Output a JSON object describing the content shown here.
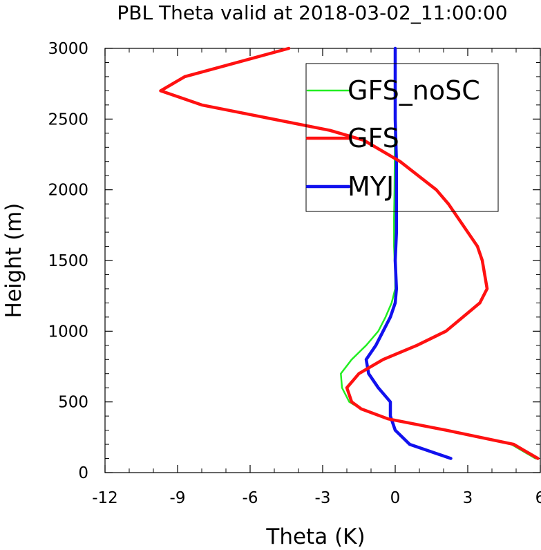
{
  "chart_data": {
    "type": "line",
    "title": "PBL Theta valid at 2018-03-02_11:00:00",
    "xlabel": "Theta (K)",
    "ylabel": "Height (m)",
    "xlim": [
      -12,
      6
    ],
    "ylim": [
      0,
      3000
    ],
    "xticks": [
      "-12",
      "-9",
      "-6",
      "-3",
      "0",
      "3",
      "6"
    ],
    "yticks": [
      "0",
      "500",
      "1000",
      "1500",
      "2000",
      "2500",
      "3000"
    ],
    "grid": false,
    "legend_position": "top-right",
    "series": [
      {
        "name": "GFS_noSC",
        "color": "#22ee22",
        "points": [
          [
            5.8,
            100
          ],
          [
            4.8,
            200
          ],
          [
            2.0,
            300
          ],
          [
            -0.3,
            380
          ],
          [
            -1.4,
            450
          ],
          [
            -1.9,
            500
          ],
          [
            -2.2,
            600
          ],
          [
            -2.25,
            700
          ],
          [
            -1.8,
            800
          ],
          [
            -1.2,
            900
          ],
          [
            -0.7,
            1000
          ],
          [
            -0.4,
            1100
          ],
          [
            -0.15,
            1200
          ],
          [
            0.0,
            1300
          ],
          [
            0.0,
            1400
          ],
          [
            -0.05,
            1600
          ],
          [
            -0.05,
            1800
          ],
          [
            -0.03,
            2000
          ],
          [
            -0.02,
            2200
          ],
          [
            -0.01,
            2400
          ],
          [
            0.0,
            2600
          ],
          [
            0.0,
            2800
          ],
          [
            0.0,
            3000
          ]
        ]
      },
      {
        "name": "GFS",
        "color": "#ff1111",
        "points": [
          [
            5.9,
            100
          ],
          [
            4.9,
            200
          ],
          [
            2.1,
            300
          ],
          [
            -0.3,
            380
          ],
          [
            -1.4,
            450
          ],
          [
            -1.8,
            500
          ],
          [
            -2.0,
            600
          ],
          [
            -1.5,
            700
          ],
          [
            -0.5,
            800
          ],
          [
            0.9,
            900
          ],
          [
            2.1,
            1000
          ],
          [
            3.5,
            1200
          ],
          [
            3.8,
            1300
          ],
          [
            3.6,
            1500
          ],
          [
            3.4,
            1600
          ],
          [
            2.2,
            1900
          ],
          [
            1.7,
            2000
          ],
          [
            0.2,
            2200
          ],
          [
            -1.3,
            2350
          ],
          [
            -2.7,
            2420
          ],
          [
            -8.0,
            2600
          ],
          [
            -9.7,
            2700
          ],
          [
            -8.7,
            2800
          ],
          [
            -4.4,
            3000
          ]
        ]
      },
      {
        "name": "MYJ",
        "color": "#1111ee",
        "points": [
          [
            2.3,
            100
          ],
          [
            0.6,
            200
          ],
          [
            0.0,
            300
          ],
          [
            -0.2,
            400
          ],
          [
            -0.2,
            500
          ],
          [
            -0.7,
            600
          ],
          [
            -1.1,
            700
          ],
          [
            -1.2,
            800
          ],
          [
            -0.8,
            900
          ],
          [
            -0.5,
            1000
          ],
          [
            -0.2,
            1100
          ],
          [
            0.0,
            1200
          ],
          [
            0.05,
            1300
          ],
          [
            0.0,
            1500
          ],
          [
            0.05,
            1700
          ],
          [
            0.05,
            2000
          ],
          [
            0.05,
            2200
          ],
          [
            0.0,
            2500
          ],
          [
            0.0,
            2800
          ],
          [
            0.0,
            3000
          ]
        ]
      }
    ]
  }
}
